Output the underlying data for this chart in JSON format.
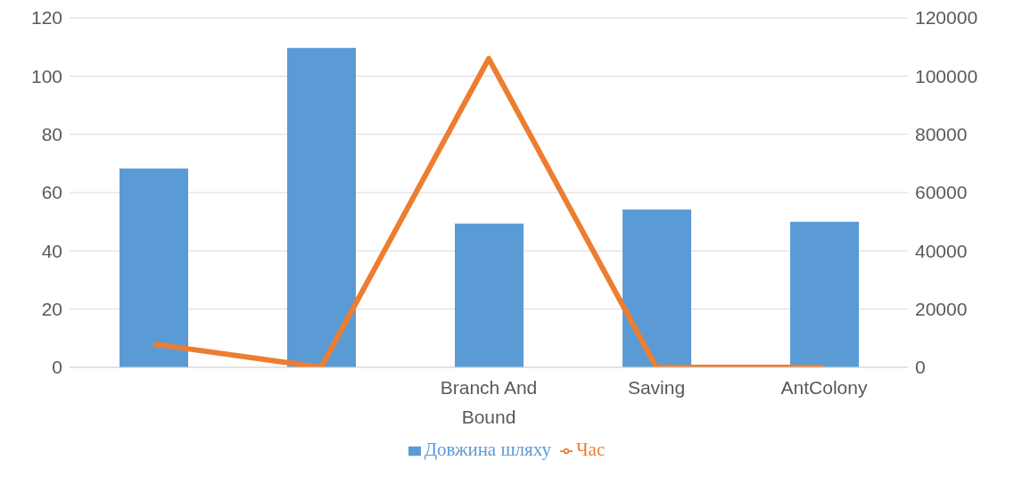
{
  "chart_data": {
    "type": "bar",
    "categories": [
      null,
      null,
      "Branch And Bound",
      "Saving",
      "AntColony"
    ],
    "series": [
      {
        "name": "Довжина шляху",
        "color": "#5b9bd5",
        "values": [
          68.3,
          109.7,
          49.4,
          54.2,
          50
        ]
      },
      {
        "name": "Час",
        "color": "#ed7d31",
        "type": "line",
        "axis": "y2",
        "values": [
          8000,
          0,
          106000,
          0,
          0
        ]
      }
    ],
    "ylim": [
      0,
      120
    ],
    "yticks": [
      0,
      20,
      40,
      60,
      80,
      100,
      120
    ],
    "y2lim": [
      0,
      120000
    ],
    "y2ticks": [
      0,
      20000,
      40000,
      60000,
      80000,
      100000,
      120000
    ],
    "grid": "y",
    "legend": "bottom",
    "marker": "none"
  }
}
